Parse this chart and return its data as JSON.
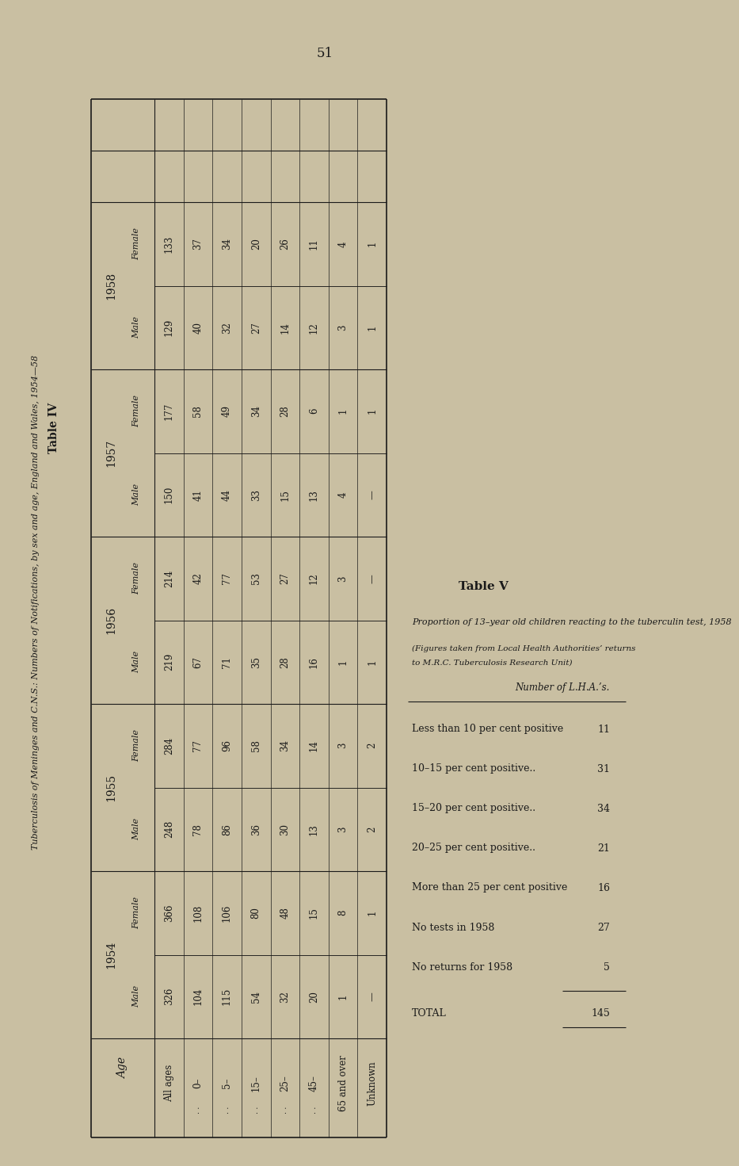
{
  "page_number": "51",
  "table4_title": "Table IV",
  "table4_subtitle": "Tuberculosis of Meninges and C.N.S.: Numbers of Notifications, by sex and age, England and Wales, 1954—58",
  "table4_col_header_year": [
    "1958",
    "1957",
    "1956",
    "1955",
    "1954"
  ],
  "table4_ages": [
    "All ages",
    "0–",
    "5–",
    "15–",
    "25–",
    "45–",
    "65 and over",
    "Unknown"
  ],
  "table4_age_dots": [
    false,
    true,
    true,
    true,
    true,
    true,
    false,
    false
  ],
  "table4_data": {
    "1958_Male": [
      129,
      40,
      32,
      27,
      14,
      12,
      3,
      1
    ],
    "1958_Female": [
      133,
      37,
      34,
      20,
      26,
      11,
      4,
      1
    ],
    "1957_Male": [
      150,
      41,
      44,
      33,
      15,
      13,
      4,
      "—"
    ],
    "1957_Female": [
      177,
      58,
      49,
      34,
      28,
      6,
      1,
      1
    ],
    "1956_Male": [
      219,
      67,
      71,
      35,
      28,
      16,
      1,
      1
    ],
    "1956_Female": [
      214,
      42,
      77,
      53,
      27,
      12,
      3,
      "—"
    ],
    "1955_Male": [
      248,
      78,
      86,
      36,
      30,
      13,
      3,
      2
    ],
    "1955_Female": [
      284,
      77,
      96,
      58,
      34,
      14,
      3,
      2
    ],
    "1954_Male": [
      326,
      104,
      115,
      54,
      32,
      20,
      1,
      "—"
    ],
    "1954_Female": [
      366,
      108,
      106,
      80,
      48,
      15,
      8,
      1
    ]
  },
  "table5_title": "Table V",
  "table5_subtitle_line1": "Proportion of 13–year old children reacting to the tuberculin test, 1958",
  "table5_note_line1": "(Figures taken from Local Health Authorities’ returns to M.R.C. Tuberculosis Research Unit)",
  "table5_col_header": "Number of L.H.A.’s.",
  "table5_categories": [
    "Less than 10 per cent positive",
    "10–15 per cent positive..",
    "15–20 per cent positive..",
    "20–25 per cent positive..",
    "More than 25 per cent positive",
    "No tests in 1958",
    "No returns for 1958"
  ],
  "table5_data": [
    11,
    31,
    34,
    21,
    16,
    27,
    5
  ],
  "table5_total_label": "Total",
  "table5_total": 145,
  "bg_color": "#c9bfa2",
  "text_color": "#1a1a1a",
  "line_color": "#1a1a1a"
}
